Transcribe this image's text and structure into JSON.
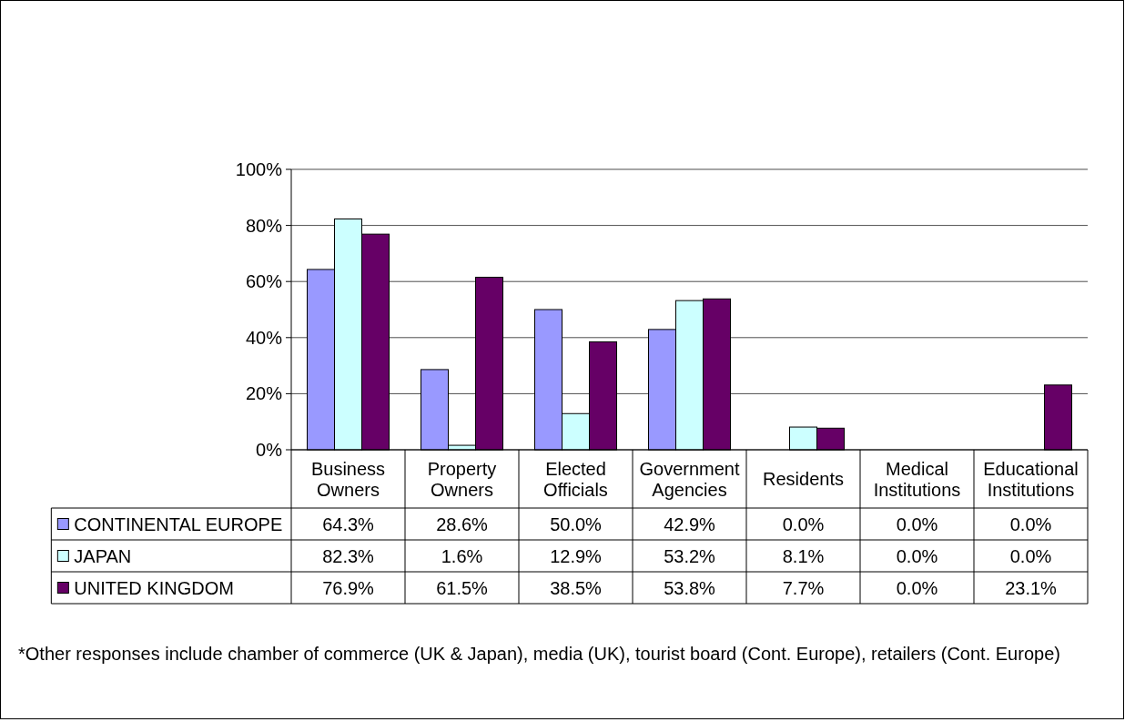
{
  "chart_data": {
    "type": "bar",
    "categories": [
      "Business Owners",
      "Property Owners",
      "Elected Officials",
      "Government Agencies",
      "Residents",
      "Medical Institutions",
      "Educational Institutions"
    ],
    "series": [
      {
        "name": "CONTINENTAL EUROPE",
        "color": "#9999ff",
        "values": [
          64.3,
          28.6,
          50.0,
          42.9,
          0.0,
          0.0,
          0.0
        ],
        "value_labels": [
          "64.3%",
          "28.6%",
          "50.0%",
          "42.9%",
          "0.0%",
          "0.0%",
          "0.0%"
        ]
      },
      {
        "name": "JAPAN",
        "color": "#ccffff",
        "values": [
          82.3,
          1.6,
          12.9,
          53.2,
          8.1,
          0.0,
          0.0
        ],
        "value_labels": [
          "82.3%",
          "1.6%",
          "12.9%",
          "53.2%",
          "8.1%",
          "0.0%",
          "0.0%"
        ]
      },
      {
        "name": "UNITED KINGDOM",
        "color": "#660066",
        "values": [
          76.9,
          61.5,
          38.5,
          53.8,
          7.7,
          0.0,
          23.1
        ],
        "value_labels": [
          "76.9%",
          "61.5%",
          "38.5%",
          "53.8%",
          "7.7%",
          "0.0%",
          "23.1%"
        ]
      }
    ],
    "ylim": [
      0,
      100
    ],
    "yticks": [
      {
        "value": 0,
        "label": "0%"
      },
      {
        "value": 20,
        "label": "20%"
      },
      {
        "value": 40,
        "label": "40%"
      },
      {
        "value": 60,
        "label": "60%"
      },
      {
        "value": 80,
        "label": "80%"
      },
      {
        "value": 100,
        "label": "100%"
      }
    ],
    "grid": "y",
    "legend": "bottom",
    "annotations": [
      "*Other responses include chamber of commerce (UK & Japan), media (UK), tourist board (Cont. Europe), retailers (Cont. Europe)"
    ]
  }
}
